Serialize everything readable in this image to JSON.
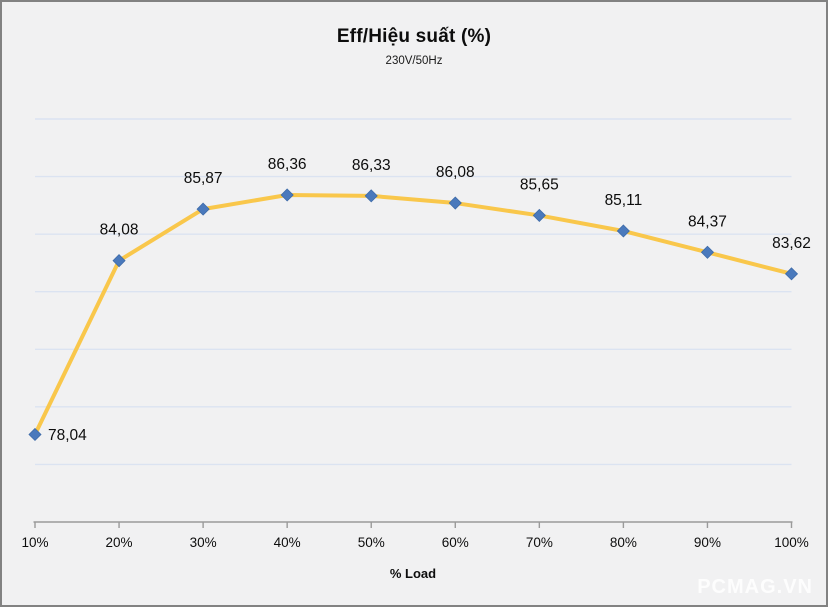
{
  "watermark": "PCMAG.VN",
  "chart_data": {
    "type": "line",
    "title": "Eff/Hiệu suất (%)",
    "subtitle": "230V/50Hz",
    "xlabel": "% Load",
    "ylabel": "",
    "categories": [
      "10%",
      "20%",
      "30%",
      "40%",
      "50%",
      "60%",
      "70%",
      "80%",
      "90%",
      "100%"
    ],
    "series": [
      {
        "name": "Eff/Hiệu suất (%)",
        "values": [
          78.04,
          84.08,
          85.87,
          86.36,
          86.33,
          86.08,
          85.65,
          85.11,
          84.37,
          83.62
        ],
        "point_labels": [
          "78,04",
          "84,08",
          "85,87",
          "86,36",
          "86,33",
          "86,08",
          "85,65",
          "85,11",
          "84,37",
          "83,62"
        ]
      }
    ],
    "ylim": [
      75,
      89
    ],
    "grid_step": 2,
    "grid": true,
    "legend": false,
    "y_tick_labels_visible": false,
    "style": {
      "line_color": "#F9C74B",
      "marker_color": "#4A79BC",
      "marker_edge_color": "#3E6BA8",
      "gridline_color": "#dbe3f1",
      "axis_color": "#9a9a9a",
      "tick_label_color": "#0d0d0d",
      "data_label_color": "#0d0d0d",
      "background": "#f1f1f2"
    }
  }
}
